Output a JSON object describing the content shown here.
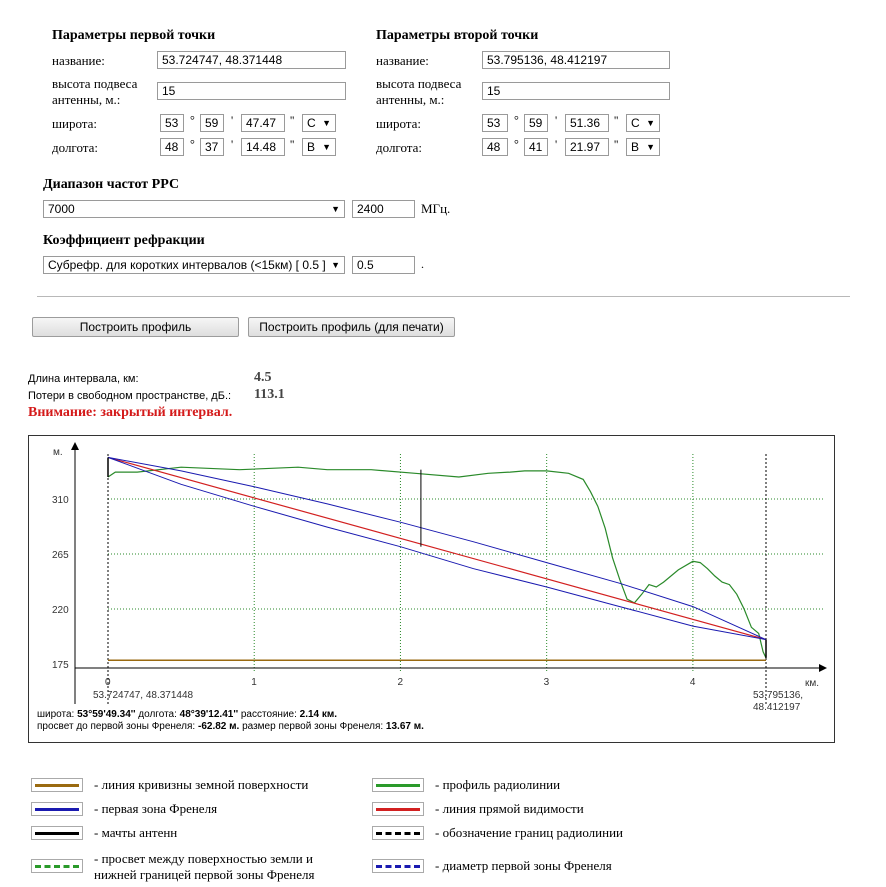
{
  "point1": {
    "header": "Параметры первой точки",
    "name_label": "название:",
    "name_value": "53.724747, 48.371448",
    "height_label_1": "высота подвеса",
    "height_label_2": "антенны, м.:",
    "height_value": "15",
    "lat_label": "широта:",
    "lat_deg": "53",
    "lat_min": "59",
    "lat_sec": "47.47",
    "lat_hemi": "С",
    "lon_label": "долгота:",
    "lon_deg": "48",
    "lon_min": "37",
    "lon_sec": "14.48",
    "lon_hemi": "В"
  },
  "point2": {
    "header": "Параметры второй точки",
    "name_label": "название:",
    "name_value": "53.795136, 48.412197",
    "height_label_1": "высота подвеса",
    "height_label_2": "антенны, м.:",
    "height_value": "15",
    "lat_label": "широта:",
    "lat_deg": "53",
    "lat_min": "59",
    "lat_sec": "51.36",
    "lat_hemi": "С",
    "lon_label": "долгота:",
    "lon_deg": "48",
    "lon_min": "41",
    "lon_sec": "21.97",
    "lon_hemi": "В"
  },
  "symbols": {
    "deg": "°",
    "min": "'",
    "sec": "''"
  },
  "frequency": {
    "header": "Диапазон частот РРС",
    "band_value": "7000",
    "mhz_value": "2400",
    "unit": "МГц."
  },
  "refraction": {
    "header": "Коэффициент рефракции",
    "select_value": "Субрефр. для коротких интервалов (<15км) [ 0.5 ]",
    "value": "0.5",
    "dot": "."
  },
  "buttons": {
    "build": "Построить профиль",
    "build_print": "Построить профиль (для печати)"
  },
  "results": {
    "length_label": "Длина интервала, км:",
    "length_value": "4.5",
    "loss_label": "Потери в свободном пространстве, дБ.:",
    "loss_value": "113.1",
    "warning": "Внимание: закрытый интервал."
  },
  "chart_data": {
    "type": "line",
    "ylabel": "м.",
    "xlabel": "км.",
    "xlim": [
      0,
      4.5
    ],
    "ylim": [
      160,
      355
    ],
    "y_ticks": [
      175,
      220,
      265,
      310
    ],
    "x_ticks": [
      0,
      1,
      2,
      3,
      4
    ],
    "start_label": "53.724747, 48.371448",
    "end_label_1": "53.795136,",
    "end_label_2": "48.412197",
    "cursor_x": 2.14,
    "info_line1_prefix": "широта: ",
    "info_lat": "53°59'49.34''",
    "info_lon_prefix": " долгота: ",
    "info_lon": "48°39'12.41''",
    "info_dist_prefix": " расстояние: ",
    "info_dist": "2.14 км.",
    "info_line2_prefix": "просвет до первой зоны Френеля: ",
    "info_clear": "-62.82 м.",
    "info_zone_prefix": " размер первой зоны Френеля: ",
    "info_zone": "13.67 м.",
    "colors": {
      "profile": "#2a8a2a",
      "los": "#d22020",
      "fresnel": "#1a1ab0",
      "curvature": "#9a6a10",
      "grid": "#2a8a2a"
    },
    "series": [
      {
        "name": "профиль радиолинии",
        "x": [
          0,
          0.05,
          0.2,
          0.5,
          0.9,
          1.3,
          1.5,
          1.8,
          2.1,
          2.4,
          2.6,
          2.75,
          2.85,
          3.0,
          3.15,
          3.25,
          3.3,
          3.35,
          3.4,
          3.45,
          3.5,
          3.55,
          3.6,
          3.65,
          3.7,
          3.75,
          3.8,
          3.9,
          4.0,
          4.05,
          4.1,
          4.15,
          4.2,
          4.25,
          4.3,
          4.35,
          4.4,
          4.45,
          4.48,
          4.5
        ],
        "y": [
          328,
          332,
          332,
          336,
          334,
          336,
          334,
          334,
          331,
          328,
          331,
          332,
          333,
          333,
          331,
          326,
          316,
          304,
          286,
          262,
          244,
          228,
          225,
          232,
          240,
          238,
          242,
          252,
          259,
          258,
          253,
          247,
          242,
          240,
          232,
          220,
          205,
          200,
          185,
          180
        ]
      },
      {
        "name": "линия прямой видимости",
        "x": [
          0,
          4.5
        ],
        "y": [
          344,
          195
        ]
      },
      {
        "name": "первая зона Френеля (верх)",
        "x": [
          0,
          0.5,
          1,
          1.5,
          2,
          2.5,
          3,
          3.5,
          4,
          4.5
        ],
        "y": [
          344,
          333,
          320,
          306,
          291,
          275,
          258,
          241,
          222,
          195
        ]
      },
      {
        "name": "первая зона Френеля (низ)",
        "x": [
          0,
          0.5,
          1,
          1.5,
          2,
          2.5,
          3,
          3.5,
          4,
          4.5
        ],
        "y": [
          344,
          322,
          304,
          287,
          271,
          253,
          238,
          222,
          206,
          195
        ]
      },
      {
        "name": "линия кривизны земной поверхности",
        "x": [
          0,
          4.5
        ],
        "y": [
          178,
          178
        ]
      }
    ]
  },
  "legend": [
    {
      "text1": "- линия кривизны земной поверхности",
      "text2": "",
      "color": "#9a6a10",
      "style": "solid"
    },
    {
      "text1": "- профиль радиолинии",
      "text2": "",
      "color": "#2a9a2a",
      "style": "solid"
    },
    {
      "text1": "- первая зона Френеля",
      "text2": "",
      "color": "#1a1ab0",
      "style": "solid"
    },
    {
      "text1": "- линия прямой видимости",
      "text2": "",
      "color": "#d22020",
      "style": "solid"
    },
    {
      "text1": "- мачты антенн",
      "text2": "",
      "color": "#000000",
      "style": "solid"
    },
    {
      "text1": "- обозначение границ радиолинии",
      "text2": "",
      "color": "#000000",
      "style": "dashed"
    },
    {
      "text1": "- просвет между поверхностью земли и",
      "text2": "нижней границей первой зоны Френеля",
      "color": "#2a9a2a",
      "style": "dashed"
    },
    {
      "text1": "- диаметр первой зоны Френеля",
      "text2": "",
      "color": "#1a1ab0",
      "style": "dashed"
    }
  ]
}
